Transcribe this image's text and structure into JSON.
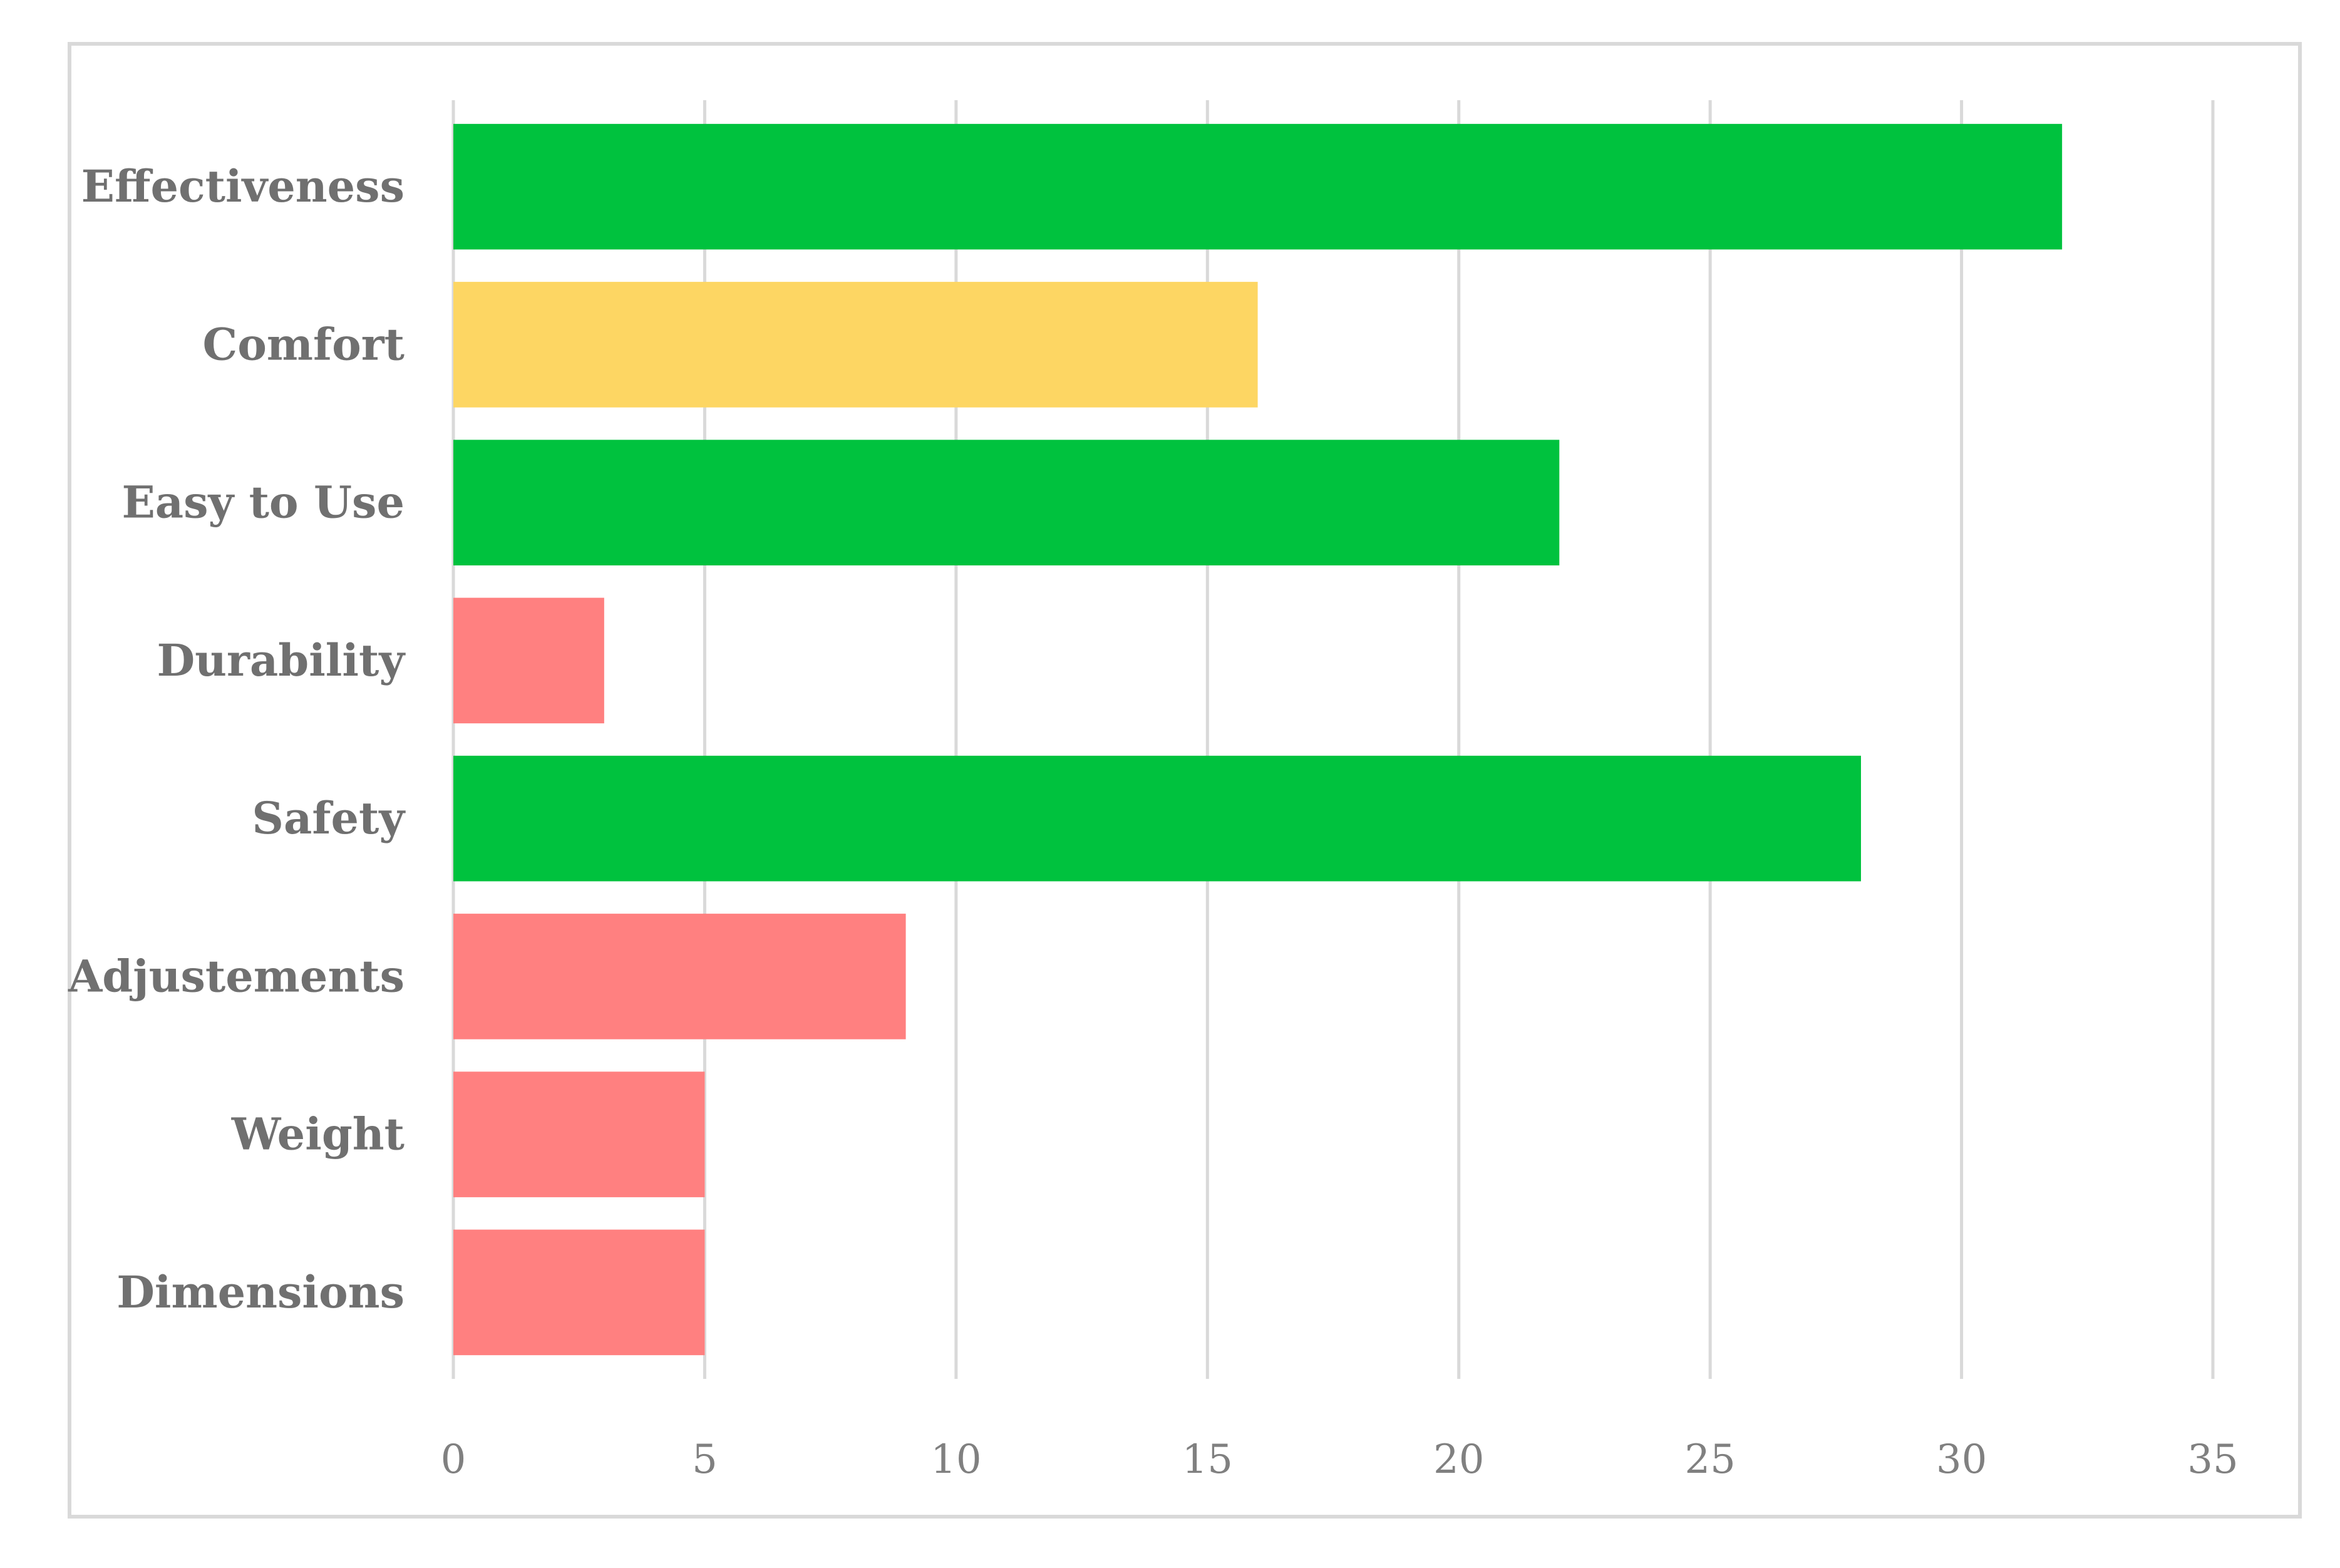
{
  "chart_data": {
    "type": "bar",
    "orientation": "horizontal",
    "categories": [
      "Effectiveness",
      "Comfort",
      "Easy to Use",
      "Durability",
      "Safety",
      "Adjustements",
      "Weight",
      "Dimensions"
    ],
    "values": [
      32,
      16,
      22,
      3,
      28,
      9,
      5,
      5
    ],
    "bar_colors": [
      "#00c23e",
      "#fdd663",
      "#00c23e",
      "#ff8080",
      "#00c23e",
      "#ff8080",
      "#ff8080",
      "#ff8080"
    ],
    "xlim": [
      0,
      35
    ],
    "xticks": [
      0,
      5,
      10,
      15,
      20,
      25,
      30,
      35
    ],
    "title": "",
    "xlabel": "",
    "ylabel": "",
    "grid": "vertical",
    "legend": "none"
  },
  "colors": {
    "positive": "#00c23e",
    "neutral": "#fdd663",
    "negative": "#ff8080",
    "grid": "#d9d9d9",
    "frame": "#d9d9d9",
    "text": "#707070"
  }
}
